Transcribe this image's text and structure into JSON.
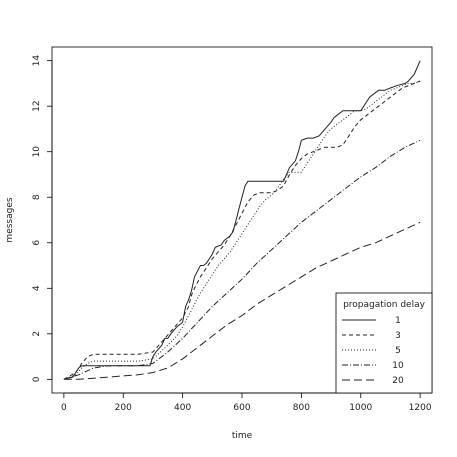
{
  "chart_data": {
    "type": "line",
    "title": "",
    "xlabel": "time",
    "ylabel": "messages",
    "xlim": [
      -40,
      1240
    ],
    "ylim": [
      -0.6,
      14.6
    ],
    "xticks": [
      0,
      200,
      400,
      600,
      800,
      1000,
      1200
    ],
    "yticks": [
      0,
      2,
      4,
      6,
      8,
      10,
      12,
      14
    ],
    "grid": false,
    "legend": {
      "title": "propagation delay",
      "position": "bottom-right"
    },
    "series": [
      {
        "name": "1",
        "dash": "",
        "x": [
          0,
          30,
          40,
          50,
          60,
          100,
          140,
          180,
          220,
          260,
          290,
          300,
          310,
          330,
          340,
          350,
          360,
          380,
          400,
          410,
          420,
          430,
          440,
          460,
          470,
          480,
          500,
          510,
          530,
          540,
          560,
          570,
          580,
          590,
          600,
          610,
          620,
          700,
          720,
          740,
          750,
          760,
          780,
          790,
          800,
          820,
          830,
          840,
          860,
          880,
          900,
          910,
          920,
          940,
          960,
          970,
          980,
          1000,
          1020,
          1030,
          1040,
          1060,
          1080,
          1100,
          1120,
          1150,
          1160,
          1180,
          1190,
          1200
        ],
        "y": [
          0,
          0.1,
          0.3,
          0.5,
          0.6,
          0.6,
          0.6,
          0.6,
          0.6,
          0.6,
          0.6,
          1.0,
          1.2,
          1.5,
          1.8,
          1.8,
          2.0,
          2.3,
          2.5,
          3.2,
          3.5,
          3.9,
          4.5,
          5.0,
          5.0,
          5.1,
          5.5,
          5.8,
          5.9,
          6.1,
          6.3,
          6.5,
          7.0,
          7.5,
          8.0,
          8.5,
          8.7,
          8.7,
          8.7,
          8.7,
          9.0,
          9.3,
          9.6,
          10.0,
          10.5,
          10.6,
          10.6,
          10.6,
          10.7,
          11.0,
          11.3,
          11.5,
          11.6,
          11.8,
          11.8,
          11.8,
          11.8,
          11.8,
          12.2,
          12.4,
          12.5,
          12.7,
          12.7,
          12.8,
          12.9,
          13.0,
          13.1,
          13.4,
          13.7,
          14.0
        ]
      },
      {
        "name": "3",
        "dash": "4,3",
        "x": [
          0,
          40,
          60,
          80,
          100,
          150,
          200,
          250,
          300,
          320,
          340,
          360,
          380,
          400,
          420,
          430,
          440,
          460,
          480,
          500,
          520,
          540,
          560,
          580,
          600,
          620,
          640,
          660,
          700,
          720,
          740,
          760,
          780,
          800,
          820,
          840,
          860,
          880,
          900,
          920,
          940,
          960,
          980,
          1000,
          1020,
          1040,
          1060,
          1080,
          1100,
          1120,
          1140,
          1160,
          1180,
          1200
        ],
        "y": [
          0,
          0.3,
          0.7,
          1.0,
          1.1,
          1.1,
          1.1,
          1.1,
          1.2,
          1.5,
          1.8,
          2.1,
          2.4,
          2.7,
          3.2,
          3.7,
          4.0,
          4.5,
          4.9,
          5.3,
          5.6,
          5.9,
          6.3,
          6.8,
          7.3,
          7.8,
          8.1,
          8.2,
          8.2,
          8.3,
          8.5,
          9.0,
          9.4,
          9.7,
          9.9,
          10.0,
          10.1,
          10.2,
          10.2,
          10.2,
          10.3,
          10.7,
          11.1,
          11.4,
          11.6,
          11.8,
          12.0,
          12.2,
          12.4,
          12.6,
          12.8,
          12.9,
          13.0,
          13.1
        ]
      },
      {
        "name": "5",
        "dash": "1,2",
        "x": [
          0,
          40,
          60,
          80,
          100,
          150,
          200,
          250,
          300,
          350,
          380,
          400,
          420,
          440,
          460,
          480,
          500,
          520,
          540,
          560,
          580,
          600,
          620,
          640,
          660,
          680,
          700,
          720,
          740,
          760,
          780,
          800,
          820,
          840,
          860,
          880,
          900,
          920,
          940,
          960,
          980,
          1000,
          1020,
          1040,
          1060,
          1080,
          1100,
          1120,
          1140,
          1160,
          1180,
          1200
        ],
        "y": [
          0,
          0.2,
          0.5,
          0.7,
          0.8,
          0.8,
          0.8,
          0.8,
          0.9,
          1.5,
          1.9,
          2.3,
          2.8,
          3.3,
          3.8,
          4.2,
          4.6,
          5.0,
          5.3,
          5.6,
          6.0,
          6.4,
          6.8,
          7.2,
          7.6,
          7.9,
          8.1,
          8.4,
          8.8,
          9.1,
          9.1,
          9.1,
          9.5,
          9.9,
          10.3,
          10.7,
          11.0,
          11.2,
          11.4,
          11.6,
          11.8,
          11.8,
          11.9,
          12.1,
          12.3,
          12.5,
          12.7,
          12.8,
          12.9,
          13.0,
          13.0,
          13.1
        ]
      },
      {
        "name": "10",
        "dash": "6,2,1,2",
        "x": [
          0,
          50,
          100,
          150,
          200,
          250,
          300,
          350,
          400,
          450,
          500,
          550,
          600,
          650,
          700,
          750,
          800,
          850,
          900,
          950,
          1000,
          1050,
          1100,
          1150,
          1200
        ],
        "y": [
          0,
          0.2,
          0.5,
          0.6,
          0.6,
          0.6,
          0.7,
          1.2,
          1.8,
          2.5,
          3.2,
          3.8,
          4.4,
          5.1,
          5.7,
          6.3,
          6.9,
          7.4,
          7.9,
          8.4,
          8.9,
          9.3,
          9.8,
          10.2,
          10.5
        ]
      },
      {
        "name": "20",
        "dash": "8,4",
        "x": [
          0,
          50,
          100,
          150,
          200,
          250,
          300,
          350,
          400,
          450,
          500,
          550,
          600,
          650,
          700,
          750,
          800,
          850,
          900,
          950,
          1000,
          1050,
          1100,
          1150,
          1200
        ],
        "y": [
          0,
          0.0,
          0.05,
          0.1,
          0.15,
          0.2,
          0.3,
          0.5,
          0.9,
          1.4,
          1.9,
          2.4,
          2.8,
          3.3,
          3.7,
          4.1,
          4.5,
          4.9,
          5.2,
          5.5,
          5.8,
          6.0,
          6.3,
          6.6,
          6.9
        ]
      }
    ]
  }
}
